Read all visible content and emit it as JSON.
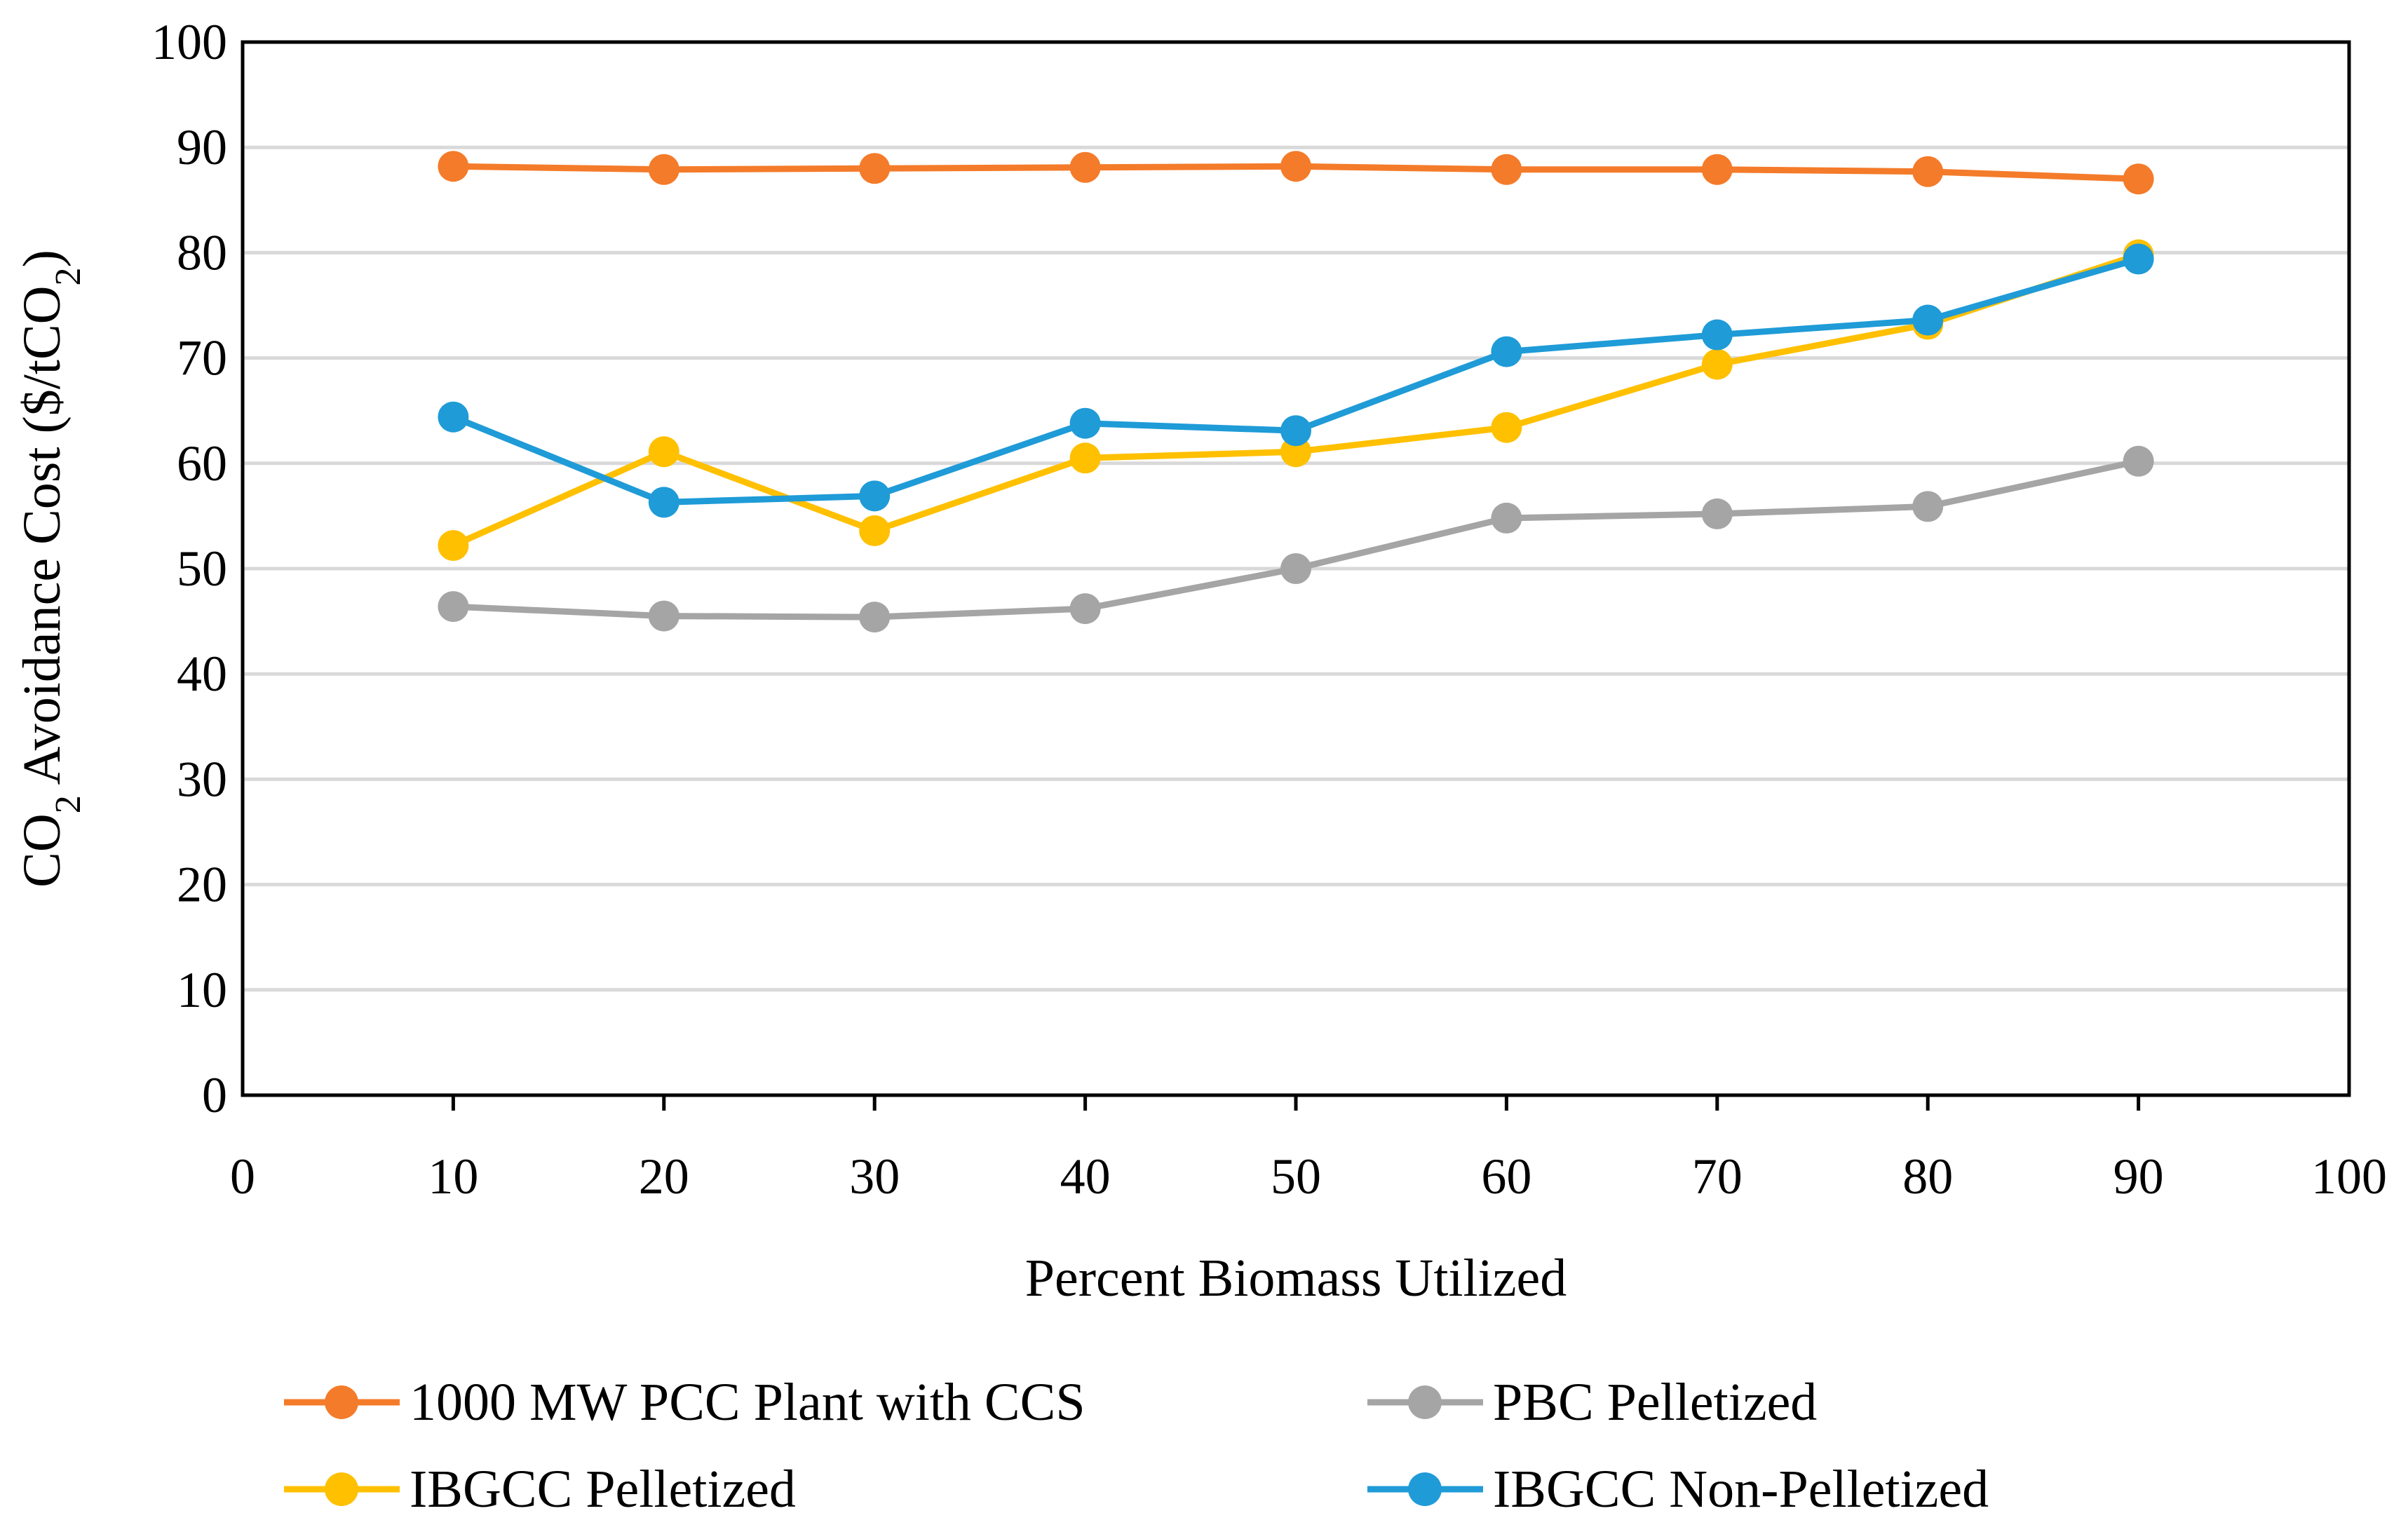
{
  "chart_data": {
    "type": "line",
    "title": "",
    "xlabel": "Percent Biomass Utilized",
    "ylabel": "CO2 Avoidance Cost ($/tCO2)",
    "ylabel_parts": {
      "a": "CO",
      "sub1": "2",
      "b": " Avoidance Cost ($/tCO",
      "sub2": "2",
      "c": ")"
    },
    "xlim": [
      0,
      100
    ],
    "ylim": [
      0,
      100
    ],
    "xticks": [
      0,
      10,
      20,
      30,
      40,
      50,
      60,
      70,
      80,
      90,
      100
    ],
    "yticks": [
      0,
      10,
      20,
      30,
      40,
      50,
      60,
      70,
      80,
      90,
      100
    ],
    "grid": "horizontal",
    "legend_position": "bottom",
    "x": [
      10,
      20,
      30,
      40,
      50,
      60,
      70,
      80,
      90
    ],
    "series": [
      {
        "name": "1000 MW PCC Plant with CCS",
        "color": "#F47B2A",
        "values": [
          88.2,
          87.9,
          88.0,
          88.1,
          88.2,
          87.9,
          87.9,
          87.7,
          87.0
        ]
      },
      {
        "name": "PBC Pelletized",
        "color": "#A5A5A5",
        "values": [
          46.4,
          45.5,
          45.4,
          46.2,
          50.0,
          54.8,
          55.2,
          55.9,
          60.2
        ]
      },
      {
        "name": "IBGCC Pelletized",
        "color": "#FFC000",
        "values": [
          52.2,
          61.1,
          53.6,
          60.5,
          61.1,
          63.4,
          69.4,
          73.2,
          79.8
        ]
      },
      {
        "name": "IBGCC Non-Pelletized",
        "color": "#1F9BD7",
        "values": [
          64.4,
          56.3,
          56.9,
          63.8,
          63.1,
          70.6,
          72.2,
          73.6,
          79.4
        ]
      }
    ]
  }
}
